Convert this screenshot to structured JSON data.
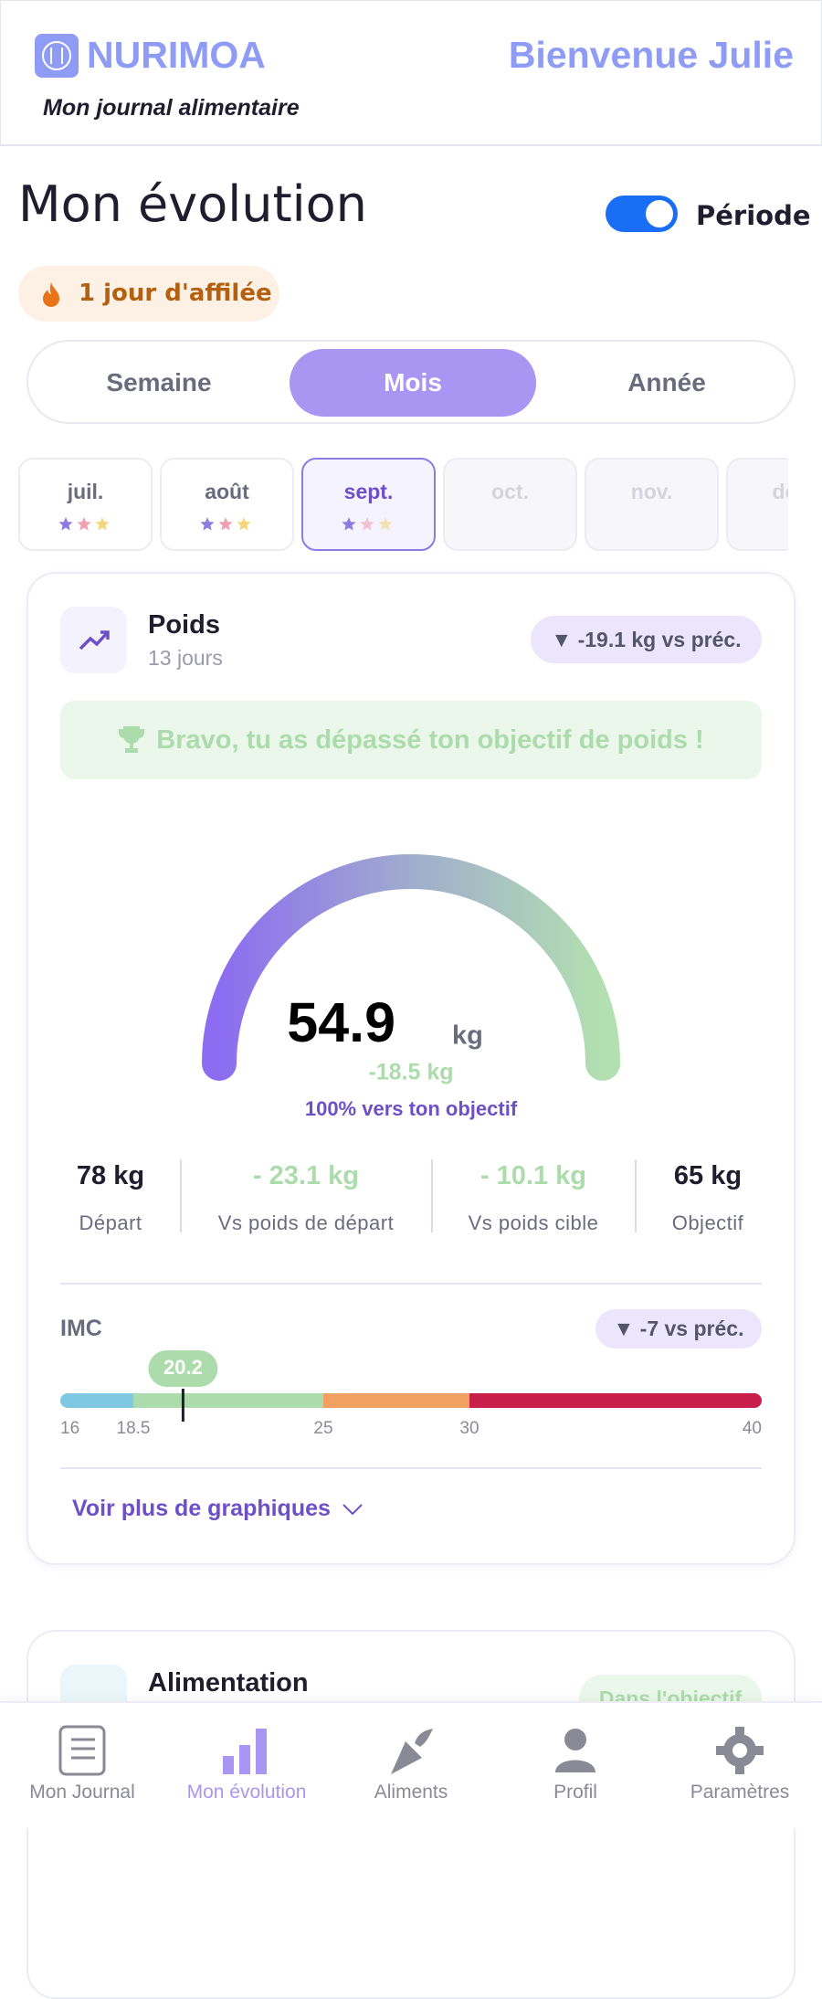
{
  "header": {
    "brand": "NURIMOA",
    "subtitle": "Mon journal alimentaire",
    "greeting": "Bienvenue Julie"
  },
  "page": {
    "title": "Mon évolution",
    "toggle_label": "Période",
    "streak": "1 jour d'affilée"
  },
  "periods": [
    "Semaine",
    "Mois",
    "Année"
  ],
  "months": [
    "juil.",
    "août",
    "sept.",
    "oct.",
    "nov.",
    "déc."
  ],
  "weight_card": {
    "title": "Poids",
    "subtitle": "13 jours",
    "badge": "▼ -19.1 kg vs préc.",
    "banner": "Bravo, tu as dépassé ton objectif de poids !",
    "value": "54.9",
    "unit": "kg",
    "delta": "-18.5 kg",
    "progress": "100% vers ton objectif",
    "stats": [
      {
        "value": "78 kg",
        "label": "Départ"
      },
      {
        "value": "- 23.1 kg",
        "label": "Vs poids de départ"
      },
      {
        "value": "- 10.1 kg",
        "label": "Vs poids cible"
      },
      {
        "value": "65 kg",
        "label": "Objectif"
      }
    ]
  },
  "bmi": {
    "label": "IMC",
    "badge": "▼ -7 vs préc.",
    "value": 20.2,
    "ticks": [
      16,
      18.5,
      25,
      30,
      40
    ],
    "colors": [
      "#7ec8e3",
      "#acdcab",
      "#f0a060",
      "#c81e4a"
    ]
  },
  "more_link": "Voir plus de graphiques",
  "next_card": {
    "title": "Alimentation",
    "badge": "Dans l'objectif"
  },
  "nav": [
    "Mon Journal",
    "Mon évolution",
    "Aliments",
    "Profil",
    "Paramètres"
  ]
}
